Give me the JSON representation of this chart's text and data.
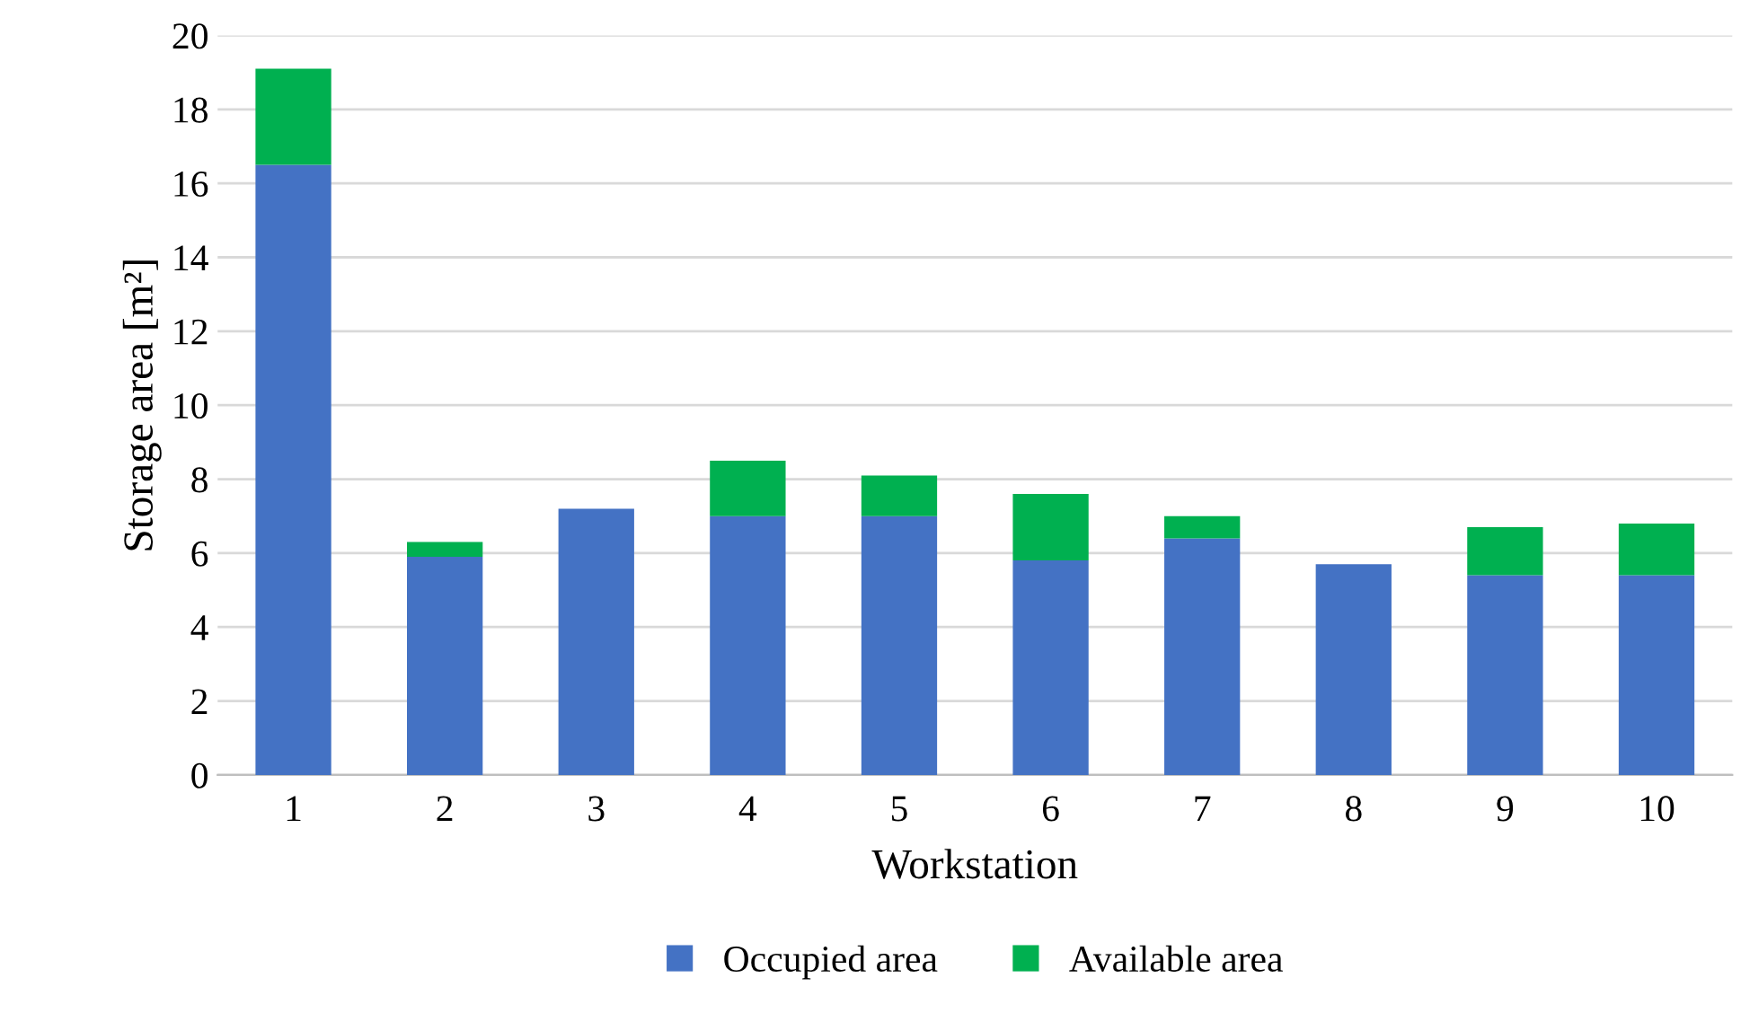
{
  "chart_data": {
    "type": "bar",
    "stacked": true,
    "xlabel": "Workstation",
    "ylabel": "Storage area [m²]",
    "categories": [
      "1",
      "2",
      "3",
      "4",
      "5",
      "6",
      "7",
      "8",
      "9",
      "10"
    ],
    "series": [
      {
        "name": "Occupied area",
        "color": "#4472c4",
        "values": [
          16.5,
          5.9,
          7.2,
          7.0,
          7.0,
          5.8,
          6.4,
          5.7,
          5.4,
          5.4
        ]
      },
      {
        "name": "Available area",
        "color": "#00b050",
        "values": [
          2.6,
          0.4,
          0,
          1.5,
          1.1,
          1.8,
          0.6,
          0,
          1.3,
          1.4
        ]
      }
    ],
    "ylim": [
      0,
      20
    ],
    "yticks": [
      0,
      2,
      4,
      6,
      8,
      10,
      12,
      14,
      16,
      18,
      20
    ],
    "grid": "y",
    "legend": "bottom"
  }
}
